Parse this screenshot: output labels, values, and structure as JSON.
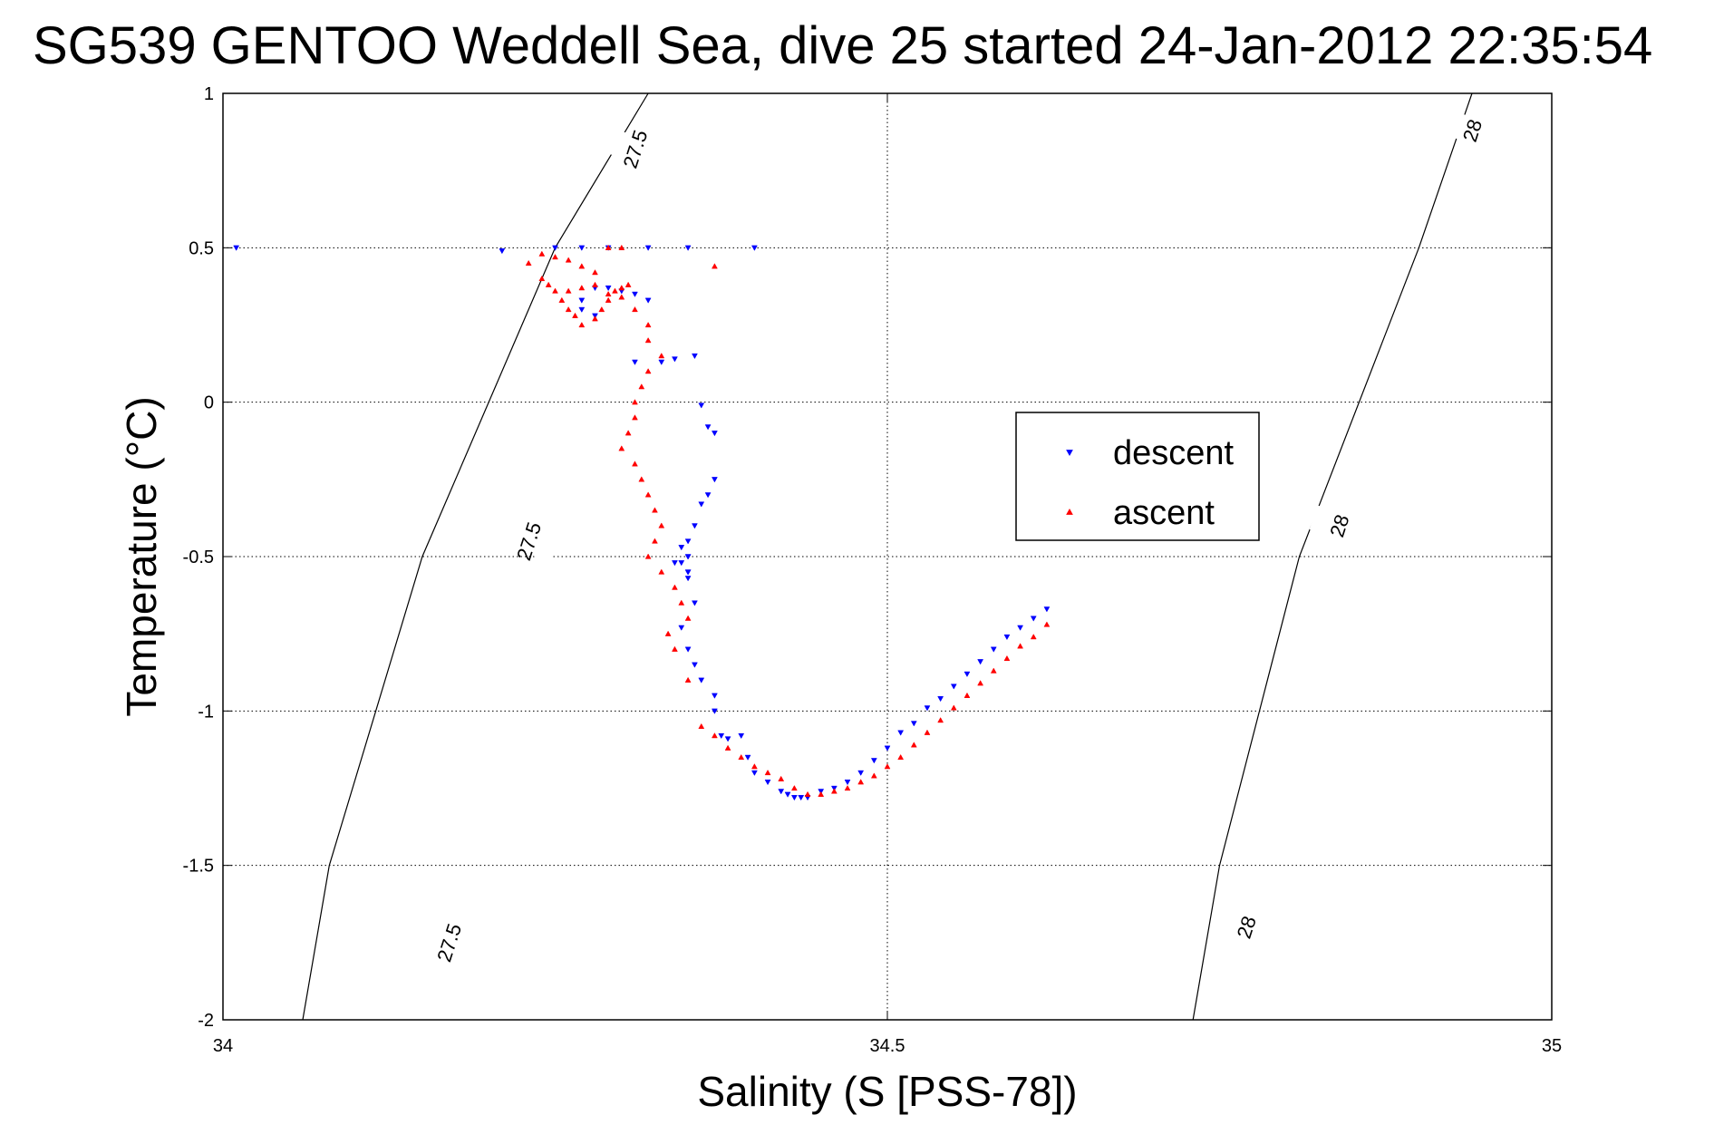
{
  "chart_data": {
    "type": "scatter",
    "title": "SG539 GENTOO Weddell Sea, dive 25 started 24-Jan-2012 22:35:54",
    "xlabel": "Salinity (S [PSS-78])",
    "ylabel": "Temperature (°C)",
    "xlim": [
      34,
      35
    ],
    "ylim": [
      -2,
      1
    ],
    "xticks": [
      34,
      34.5,
      35
    ],
    "xtick_labels": [
      "34",
      "34.5",
      "35"
    ],
    "yticks": [
      1,
      0.5,
      0,
      -0.5,
      -1,
      -1.5,
      -2
    ],
    "ytick_labels": [
      "1",
      "0.5",
      "0",
      "-0.5",
      "-1",
      "-1.5",
      "-2"
    ],
    "grid": true,
    "legend_position": "center-right",
    "contours": [
      {
        "label": "27.5",
        "points": [
          [
            34.32,
            1.0
          ],
          [
            34.25,
            0.5
          ],
          [
            34.15,
            -0.5
          ],
          [
            34.08,
            -1.5
          ],
          [
            34.06,
            -2.0
          ]
        ],
        "label_positions": [
          [
            34.31,
            0.82
          ],
          [
            34.23,
            -0.45
          ],
          [
            34.17,
            -1.75
          ]
        ]
      },
      {
        "label": "28",
        "points": [
          [
            34.94,
            1.0
          ],
          [
            34.9,
            0.5
          ],
          [
            34.81,
            -0.5
          ],
          [
            34.75,
            -1.5
          ],
          [
            34.73,
            -2.0
          ]
        ],
        "label_positions": [
          [
            34.94,
            0.88
          ],
          [
            34.84,
            -0.4
          ],
          [
            34.77,
            -1.7
          ]
        ]
      }
    ],
    "series": [
      {
        "name": "descent",
        "color": "#0000ff",
        "marker": "triangle-down",
        "x": [
          34.01,
          34.21,
          34.25,
          34.27,
          34.29,
          34.32,
          34.35,
          34.4,
          34.27,
          34.28,
          34.29,
          34.3,
          34.31,
          34.32,
          34.27,
          34.28,
          34.31,
          34.33,
          34.34,
          34.355,
          34.36,
          34.365,
          34.37,
          34.37,
          34.365,
          34.36,
          34.355,
          34.35,
          34.35,
          34.345,
          34.35,
          34.35,
          34.34,
          34.345,
          34.35,
          34.35,
          34.355,
          34.345,
          34.35,
          34.355,
          34.36,
          34.37,
          34.37,
          34.375,
          34.38,
          34.39,
          34.395,
          34.4,
          34.41,
          34.42,
          34.425,
          34.43,
          34.435,
          34.44,
          34.45,
          34.46,
          34.47,
          34.48,
          34.49,
          34.5,
          34.51,
          34.52,
          34.53,
          34.54,
          34.55,
          34.56,
          34.57,
          34.58,
          34.59,
          34.6,
          34.61,
          34.62
        ],
        "y": [
          0.5,
          0.49,
          0.5,
          0.5,
          0.5,
          0.5,
          0.5,
          0.5,
          0.33,
          0.37,
          0.37,
          0.36,
          0.35,
          0.33,
          0.3,
          0.28,
          0.13,
          0.13,
          0.14,
          0.15,
          -0.01,
          -0.08,
          -0.1,
          -0.25,
          -0.3,
          -0.33,
          -0.4,
          -0.45,
          -0.5,
          -0.52,
          -0.55,
          -0.57,
          -0.52,
          -0.47,
          -0.5,
          -0.55,
          -0.65,
          -0.73,
          -0.8,
          -0.85,
          -0.9,
          -0.95,
          -1.0,
          -1.08,
          -1.09,
          -1.08,
          -1.15,
          -1.2,
          -1.23,
          -1.26,
          -1.27,
          -1.28,
          -1.28,
          -1.28,
          -1.26,
          -1.25,
          -1.23,
          -1.2,
          -1.16,
          -1.12,
          -1.07,
          -1.04,
          -0.99,
          -0.96,
          -0.92,
          -0.88,
          -0.84,
          -0.8,
          -0.76,
          -0.73,
          -0.7,
          -0.67
        ]
      },
      {
        "name": "ascent",
        "color": "#ff0000",
        "marker": "triangle-up",
        "x": [
          34.23,
          34.24,
          34.25,
          34.26,
          34.27,
          34.28,
          34.29,
          34.3,
          34.37,
          34.24,
          34.245,
          34.25,
          34.255,
          34.26,
          34.265,
          34.27,
          34.28,
          34.285,
          34.29,
          34.295,
          34.3,
          34.305,
          34.26,
          34.27,
          34.28,
          34.29,
          34.3,
          34.31,
          34.32,
          34.32,
          34.33,
          34.32,
          34.315,
          34.31,
          34.31,
          34.305,
          34.3,
          34.31,
          34.315,
          34.32,
          34.325,
          34.33,
          34.325,
          34.32,
          34.33,
          34.34,
          34.345,
          34.35,
          34.335,
          34.34,
          34.35,
          34.36,
          34.37,
          34.38,
          34.39,
          34.4,
          34.41,
          34.42,
          34.43,
          34.44,
          34.45,
          34.46,
          34.47,
          34.48,
          34.49,
          34.5,
          34.51,
          34.52,
          34.53,
          34.54,
          34.55,
          34.56,
          34.57,
          34.58,
          34.59,
          34.6,
          34.61,
          34.62
        ],
        "y": [
          0.45,
          0.48,
          0.47,
          0.46,
          0.44,
          0.42,
          0.5,
          0.5,
          0.44,
          0.4,
          0.38,
          0.36,
          0.33,
          0.3,
          0.28,
          0.25,
          0.27,
          0.3,
          0.33,
          0.36,
          0.37,
          0.38,
          0.36,
          0.37,
          0.38,
          0.35,
          0.34,
          0.3,
          0.25,
          0.2,
          0.15,
          0.1,
          0.05,
          0.0,
          -0.05,
          -0.1,
          -0.15,
          -0.2,
          -0.25,
          -0.3,
          -0.35,
          -0.4,
          -0.45,
          -0.5,
          -0.55,
          -0.6,
          -0.65,
          -0.7,
          -0.75,
          -0.8,
          -0.9,
          -1.05,
          -1.08,
          -1.12,
          -1.15,
          -1.18,
          -1.2,
          -1.22,
          -1.25,
          -1.27,
          -1.27,
          -1.26,
          -1.25,
          -1.23,
          -1.21,
          -1.18,
          -1.15,
          -1.11,
          -1.07,
          -1.03,
          -0.99,
          -0.95,
          -0.91,
          -0.87,
          -0.83,
          -0.79,
          -0.76,
          -0.72
        ]
      }
    ]
  }
}
